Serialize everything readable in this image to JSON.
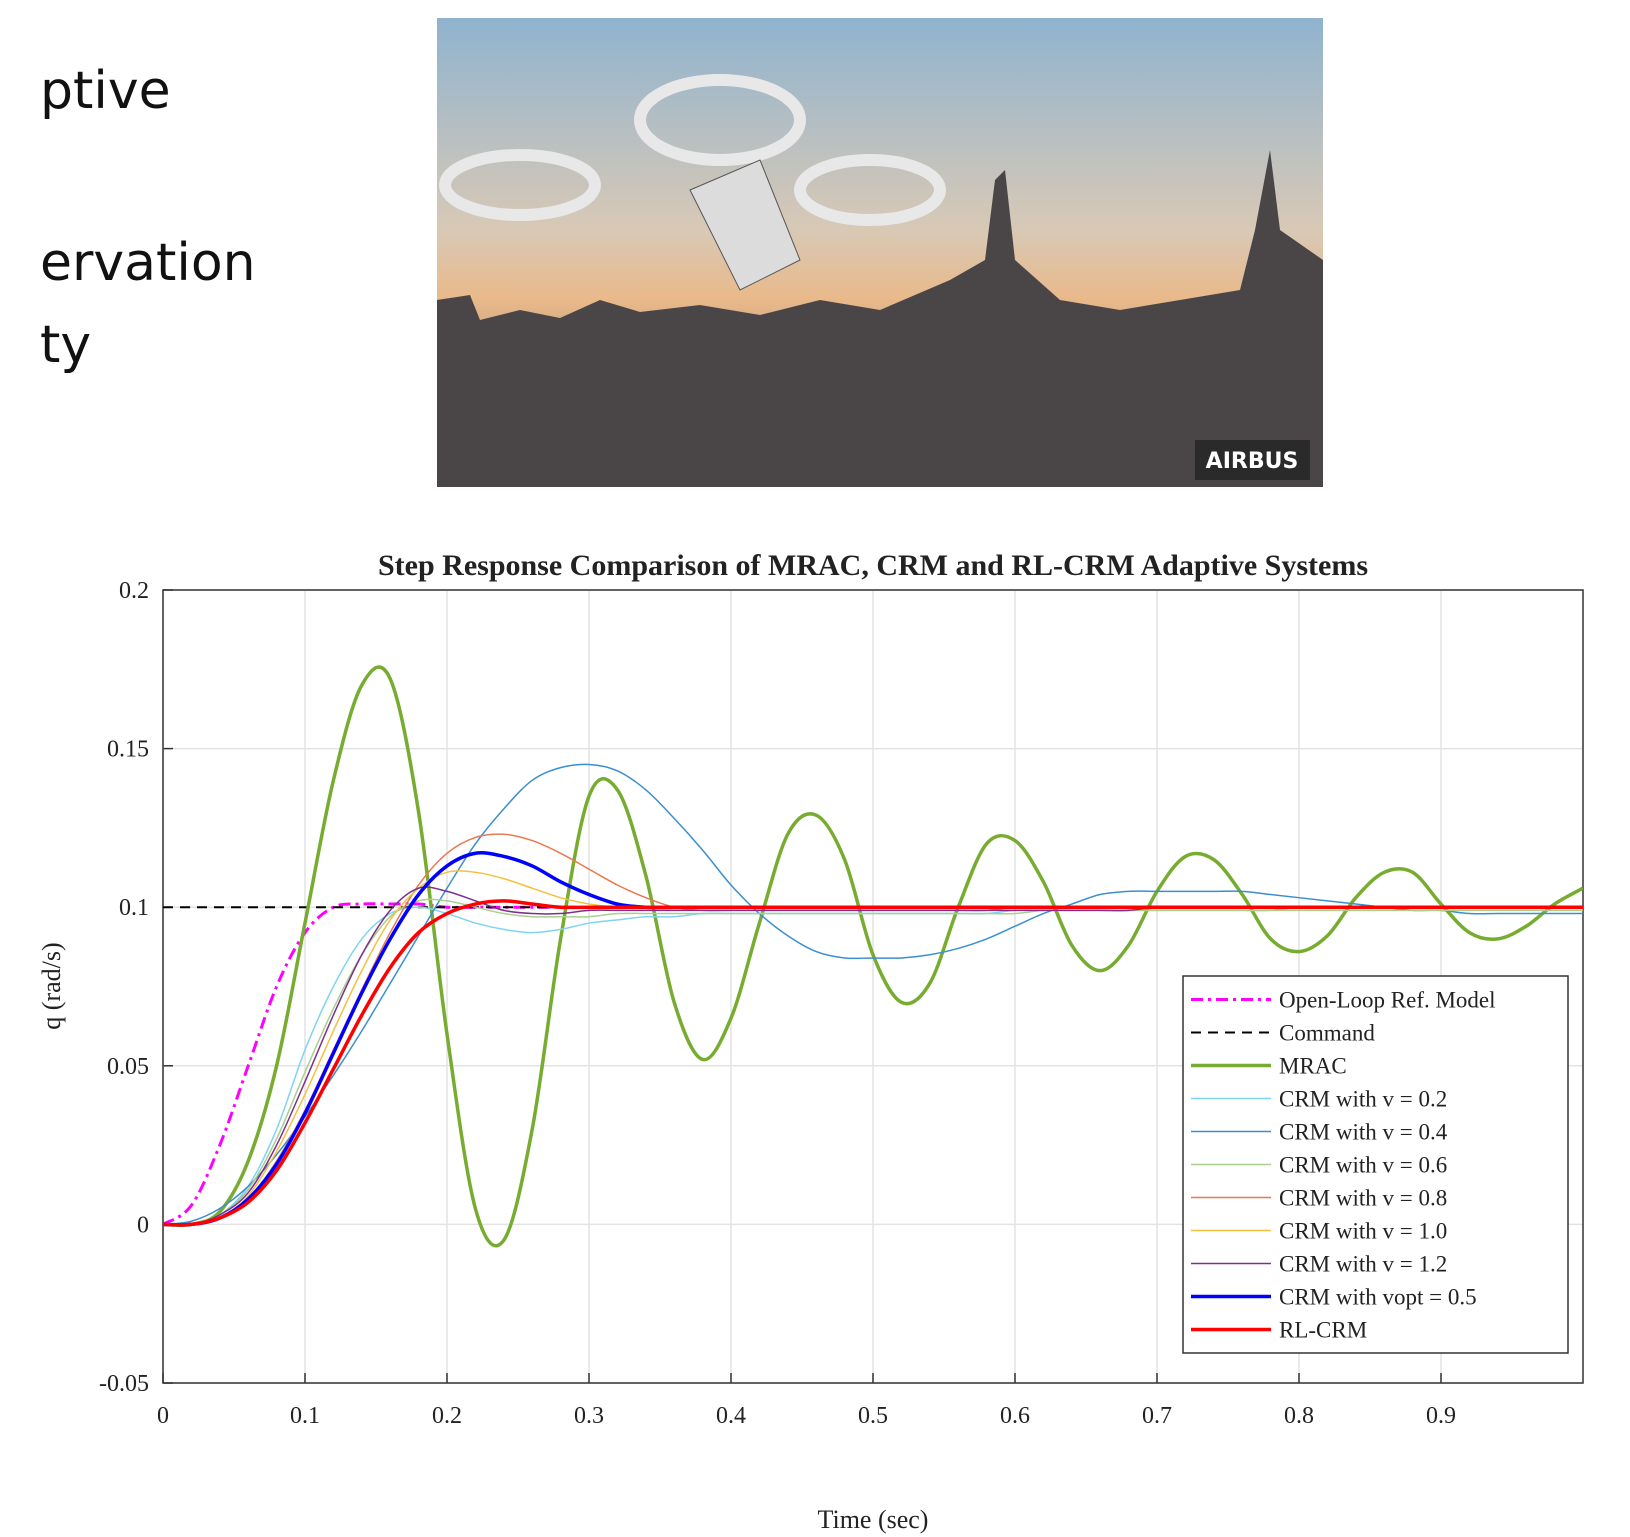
{
  "slide": {
    "text_fragments": [
      "ptive",
      "ervation",
      "ty"
    ],
    "image": {
      "caption": "AIRBUS"
    }
  },
  "chart_data": {
    "type": "line",
    "title": "Step Response Comparison of MRAC, CRM and RL-CRM Adaptive Systems",
    "xlabel": "Time (sec)",
    "ylabel": "q (rad/s)",
    "xlim": [
      0,
      1
    ],
    "ylim": [
      -0.05,
      0.2
    ],
    "xticks": [
      0,
      0.1,
      0.2,
      0.3,
      0.4,
      0.5,
      0.6,
      0.7,
      0.8,
      0.9
    ],
    "yticks": [
      -0.05,
      0,
      0.05,
      0.1,
      0.15,
      0.2
    ],
    "grid": true,
    "legend": "lower right",
    "x": [
      0,
      0.02,
      0.04,
      0.06,
      0.08,
      0.1,
      0.12,
      0.14,
      0.16,
      0.18,
      0.2,
      0.22,
      0.24,
      0.26,
      0.28,
      0.3,
      0.32,
      0.34,
      0.36,
      0.38,
      0.4,
      0.42,
      0.44,
      0.46,
      0.48,
      0.5,
      0.52,
      0.54,
      0.56,
      0.58,
      0.6,
      0.62,
      0.64,
      0.66,
      0.68,
      0.7,
      0.72,
      0.74,
      0.76,
      0.78,
      0.8,
      0.82,
      0.84,
      0.86,
      0.88,
      0.9,
      0.92,
      0.94,
      0.96,
      0.98,
      1
    ],
    "series": [
      {
        "name": "Open-Loop Ref. Model",
        "color": "#ff00ff",
        "dash": "dashdot",
        "width": 3,
        "values": [
          0,
          0.006,
          0.025,
          0.05,
          0.075,
          0.092,
          0.1,
          0.101,
          0.101,
          0.101,
          0.1,
          0.1,
          0.1,
          0.1,
          0.1,
          0.1,
          0.1,
          0.1,
          0.1,
          0.1,
          0.1,
          0.1,
          0.1,
          0.1,
          0.1,
          0.1,
          0.1,
          0.1,
          0.1,
          0.1,
          0.1,
          0.1,
          0.1,
          0.1,
          0.1,
          0.1,
          0.1,
          0.1,
          0.1,
          0.1,
          0.1,
          0.1,
          0.1,
          0.1,
          0.1,
          0.1,
          0.1,
          0.1,
          0.1,
          0.1,
          0.1
        ]
      },
      {
        "name": "Command",
        "color": "#000000",
        "dash": "dashed",
        "width": 2,
        "values": [
          0.1,
          0.1,
          0.1,
          0.1,
          0.1,
          0.1,
          0.1,
          0.1,
          0.1,
          0.1,
          0.1,
          0.1,
          0.1,
          0.1,
          0.1,
          0.1,
          0.1,
          0.1,
          0.1,
          0.1,
          0.1,
          0.1,
          0.1,
          0.1,
          0.1,
          0.1,
          0.1,
          0.1,
          0.1,
          0.1,
          0.1,
          0.1,
          0.1,
          0.1,
          0.1,
          0.1,
          0.1,
          0.1,
          0.1,
          0.1,
          0.1,
          0.1,
          0.1,
          0.1,
          0.1,
          0.1,
          0.1,
          0.1,
          0.1,
          0.1,
          0.1
        ]
      },
      {
        "name": "MRAC",
        "color": "#77ac30",
        "dash": "solid",
        "width": 3.5,
        "values": [
          0,
          0,
          0.004,
          0.02,
          0.05,
          0.095,
          0.14,
          0.17,
          0.172,
          0.13,
          0.06,
          0.005,
          -0.005,
          0.03,
          0.09,
          0.135,
          0.137,
          0.11,
          0.07,
          0.052,
          0.065,
          0.095,
          0.123,
          0.129,
          0.115,
          0.085,
          0.07,
          0.076,
          0.1,
          0.12,
          0.121,
          0.108,
          0.088,
          0.08,
          0.088,
          0.105,
          0.116,
          0.115,
          0.104,
          0.09,
          0.086,
          0.091,
          0.103,
          0.111,
          0.111,
          0.101,
          0.092,
          0.09,
          0.094,
          0.101,
          0.106
        ]
      },
      {
        "name": "CRM with v = 0.2",
        "color": "#80d4f2",
        "dash": "solid",
        "width": 1.5,
        "values": [
          0,
          0,
          0.003,
          0.012,
          0.03,
          0.055,
          0.075,
          0.09,
          0.098,
          0.1,
          0.098,
          0.095,
          0.093,
          0.092,
          0.093,
          0.095,
          0.096,
          0.097,
          0.097,
          0.098,
          0.098,
          0.098,
          0.098,
          0.098,
          0.098,
          0.098,
          0.098,
          0.098,
          0.098,
          0.098,
          0.099,
          0.099,
          0.099,
          0.099,
          0.099,
          0.099,
          0.099,
          0.099,
          0.099,
          0.099,
          0.1,
          0.1,
          0.1,
          0.1,
          0.1,
          0.1,
          0.1,
          0.1,
          0.1,
          0.1,
          0.1
        ]
      },
      {
        "name": "CRM with v = 0.4",
        "color": "#3a8fd0",
        "dash": "solid",
        "width": 1.5,
        "values": [
          0,
          0.001,
          0.005,
          0.012,
          0.022,
          0.034,
          0.047,
          0.061,
          0.076,
          0.091,
          0.106,
          0.12,
          0.131,
          0.14,
          0.144,
          0.145,
          0.143,
          0.137,
          0.128,
          0.118,
          0.107,
          0.098,
          0.091,
          0.086,
          0.084,
          0.084,
          0.084,
          0.085,
          0.087,
          0.09,
          0.094,
          0.098,
          0.101,
          0.104,
          0.105,
          0.105,
          0.105,
          0.105,
          0.105,
          0.104,
          0.103,
          0.102,
          0.101,
          0.1,
          0.099,
          0.099,
          0.098,
          0.098,
          0.098,
          0.098,
          0.098
        ]
      },
      {
        "name": "CRM with v = 0.6",
        "color": "#a8d08d",
        "dash": "solid",
        "width": 1.5,
        "values": [
          0,
          0,
          0.003,
          0.011,
          0.027,
          0.048,
          0.068,
          0.085,
          0.097,
          0.102,
          0.102,
          0.1,
          0.098,
          0.097,
          0.097,
          0.097,
          0.098,
          0.098,
          0.098,
          0.098,
          0.098,
          0.098,
          0.098,
          0.098,
          0.098,
          0.098,
          0.098,
          0.098,
          0.098,
          0.098,
          0.098,
          0.099,
          0.099,
          0.099,
          0.099,
          0.099,
          0.099,
          0.099,
          0.099,
          0.099,
          0.099,
          0.099,
          0.099,
          0.099,
          0.099,
          0.099,
          0.099,
          0.099,
          0.099,
          0.099,
          0.099
        ]
      },
      {
        "name": "CRM with v = 0.8",
        "color": "#e8784f",
        "dash": "solid",
        "width": 1.5,
        "values": [
          0,
          0,
          0.002,
          0.008,
          0.02,
          0.036,
          0.055,
          0.074,
          0.092,
          0.107,
          0.117,
          0.122,
          0.123,
          0.121,
          0.117,
          0.112,
          0.107,
          0.103,
          0.1,
          0.099,
          0.099,
          0.099,
          0.099,
          0.099,
          0.099,
          0.099,
          0.099,
          0.099,
          0.099,
          0.099,
          0.1,
          0.1,
          0.1,
          0.1,
          0.1,
          0.1,
          0.1,
          0.1,
          0.1,
          0.1,
          0.1,
          0.1,
          0.1,
          0.1,
          0.1,
          0.1,
          0.1,
          0.1,
          0.1,
          0.1,
          0.1
        ]
      },
      {
        "name": "CRM with v = 1.0",
        "color": "#f5c040",
        "dash": "solid",
        "width": 1.5,
        "values": [
          0,
          0,
          0.002,
          0.009,
          0.023,
          0.041,
          0.061,
          0.08,
          0.096,
          0.106,
          0.111,
          0.111,
          0.109,
          0.106,
          0.103,
          0.101,
          0.1,
          0.1,
          0.1,
          0.1,
          0.1,
          0.1,
          0.1,
          0.1,
          0.1,
          0.1,
          0.1,
          0.1,
          0.1,
          0.1,
          0.1,
          0.1,
          0.1,
          0.1,
          0.1,
          0.1,
          0.1,
          0.1,
          0.1,
          0.1,
          0.1,
          0.1,
          0.1,
          0.1,
          0.1,
          0.1,
          0.1,
          0.1,
          0.1,
          0.1,
          0.1
        ]
      },
      {
        "name": "CRM with v = 1.2",
        "color": "#7e2f8e",
        "dash": "solid",
        "width": 1.5,
        "values": [
          0,
          0,
          0.003,
          0.01,
          0.025,
          0.045,
          0.066,
          0.085,
          0.099,
          0.106,
          0.105,
          0.102,
          0.099,
          0.098,
          0.098,
          0.099,
          0.099,
          0.099,
          0.099,
          0.099,
          0.099,
          0.099,
          0.099,
          0.099,
          0.099,
          0.099,
          0.099,
          0.099,
          0.099,
          0.099,
          0.099,
          0.099,
          0.099,
          0.099,
          0.099,
          0.1,
          0.1,
          0.1,
          0.1,
          0.1,
          0.1,
          0.1,
          0.1,
          0.1,
          0.1,
          0.1,
          0.1,
          0.1,
          0.1,
          0.1,
          0.1
        ]
      },
      {
        "name": "CRM with vopt = 0.5",
        "color": "#0000ff",
        "dash": "solid",
        "width": 3.5,
        "values": [
          0,
          0,
          0.002,
          0.008,
          0.019,
          0.035,
          0.054,
          0.073,
          0.09,
          0.104,
          0.113,
          0.117,
          0.116,
          0.113,
          0.108,
          0.104,
          0.101,
          0.1,
          0.1,
          0.1,
          0.1,
          0.1,
          0.1,
          0.1,
          0.1,
          0.1,
          0.1,
          0.1,
          0.1,
          0.1,
          0.1,
          0.1,
          0.1,
          0.1,
          0.1,
          0.1,
          0.1,
          0.1,
          0.1,
          0.1,
          0.1,
          0.1,
          0.1,
          0.1,
          0.1,
          0.1,
          0.1,
          0.1,
          0.1,
          0.1,
          0.1
        ]
      },
      {
        "name": "RL-CRM",
        "color": "#ff0000",
        "dash": "solid",
        "width": 3.5,
        "values": [
          0,
          0,
          0.002,
          0.007,
          0.017,
          0.032,
          0.049,
          0.066,
          0.081,
          0.092,
          0.098,
          0.101,
          0.102,
          0.101,
          0.1,
          0.1,
          0.1,
          0.1,
          0.1,
          0.1,
          0.1,
          0.1,
          0.1,
          0.1,
          0.1,
          0.1,
          0.1,
          0.1,
          0.1,
          0.1,
          0.1,
          0.1,
          0.1,
          0.1,
          0.1,
          0.1,
          0.1,
          0.1,
          0.1,
          0.1,
          0.1,
          0.1,
          0.1,
          0.1,
          0.1,
          0.1,
          0.1,
          0.1,
          0.1,
          0.1,
          0.1
        ]
      }
    ]
  }
}
